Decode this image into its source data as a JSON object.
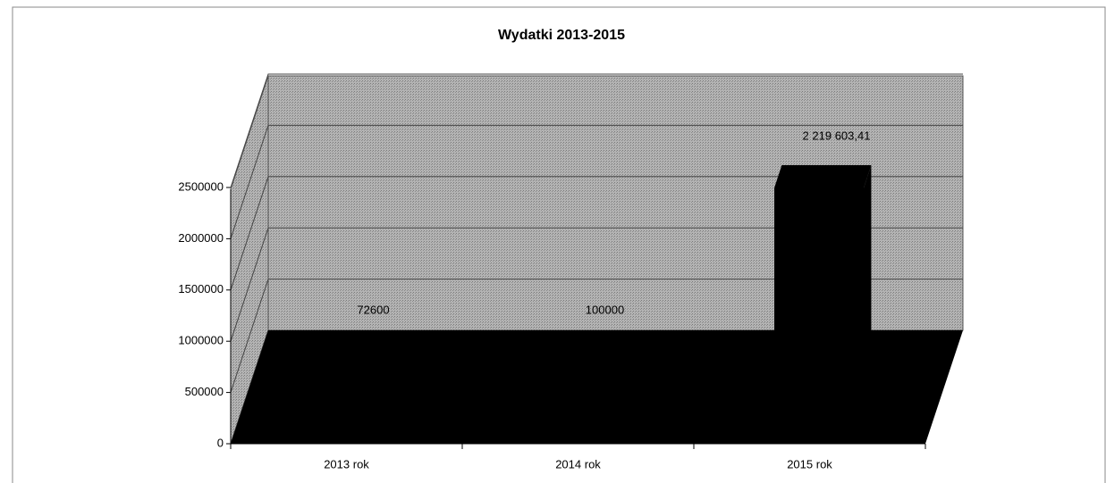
{
  "chart_data": {
    "type": "bar3d",
    "title": "Wydatki 2013-2015",
    "categories": [
      "2013 rok",
      "2014 rok",
      "2015 rok"
    ],
    "values": [
      72600,
      100000,
      2219603.41
    ],
    "value_labels": [
      "72600",
      "100000",
      "2 219 603,41"
    ],
    "color": "#000000",
    "ylim": [
      0,
      2500000
    ],
    "yticks": [
      0,
      500000,
      1000000,
      1500000,
      2000000,
      2500000
    ],
    "grid": true
  }
}
